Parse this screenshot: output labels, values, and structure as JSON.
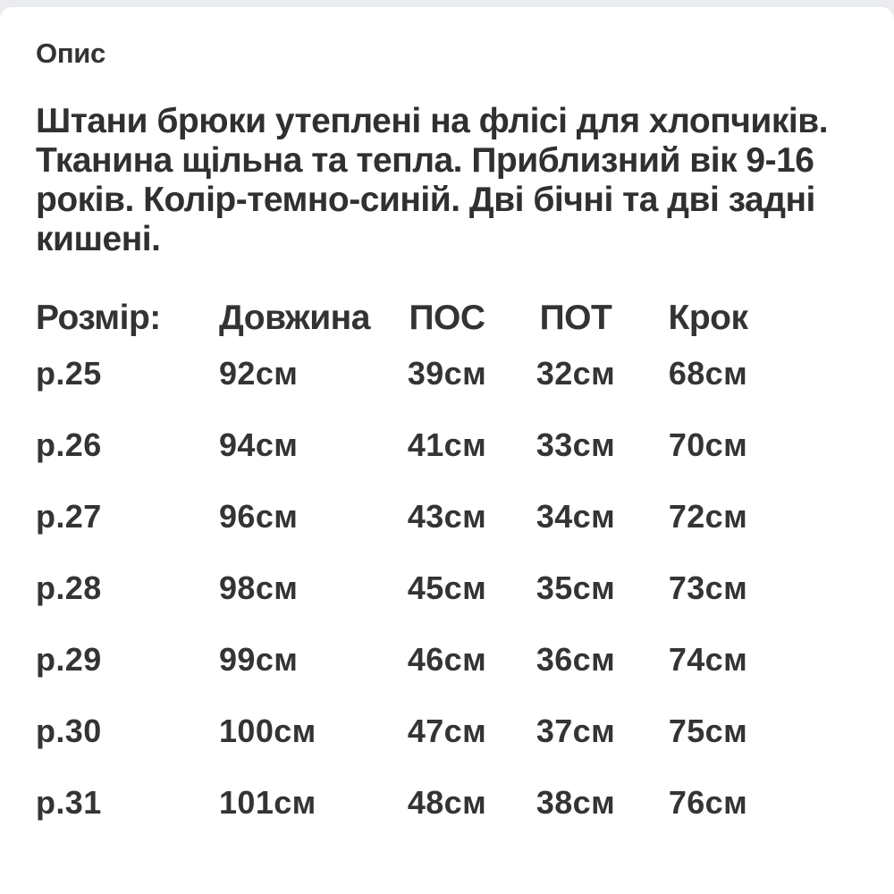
{
  "colors": {
    "page_background": "#ebecf0",
    "card_background": "#ffffff",
    "text": "#333333"
  },
  "section": {
    "title": "Опис"
  },
  "description": {
    "lines": [
      "Штани брюки утеплені на флісі для хлопчиків.",
      "Тканина щільна та тепла. Приблизний вік 9-16",
      "років. Колір-темно-синій. Дві бічні та дві задні",
      "кишені."
    ]
  },
  "size_table": {
    "headers": [
      "Розмір:",
      "Довжина",
      "ПОС",
      "ПОТ",
      "Крок"
    ],
    "rows": [
      [
        "р.25",
        "92см",
        "39см",
        "32см",
        "68см"
      ],
      [
        "р.26",
        "94см",
        "41см",
        "33см",
        "70см"
      ],
      [
        "р.27",
        "96см",
        "43см",
        "34см",
        "72см"
      ],
      [
        "р.28",
        "98см",
        "45см",
        "35см",
        "73см"
      ],
      [
        "р.29",
        "99см",
        "46см",
        "36см",
        "74см"
      ],
      [
        "р.30",
        "100см",
        "47см",
        "37см",
        "75см"
      ],
      [
        "р.31",
        "101см",
        "48см",
        "38см",
        "76см"
      ]
    ]
  }
}
